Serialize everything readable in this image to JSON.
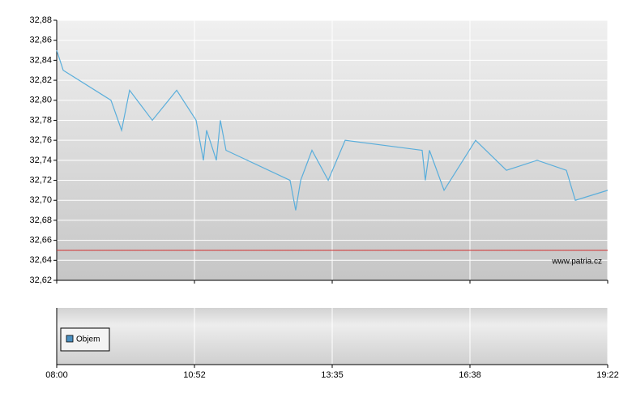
{
  "chart_data": {
    "type": "line",
    "x": [
      0,
      0.047,
      0.394,
      0.471,
      0.529,
      0.694,
      0.871,
      1.012,
      1.065,
      1.088,
      1.159,
      1.188,
      1.229,
      1.694,
      1.735,
      1.771,
      1.853,
      1.971,
      2.094,
      2.653,
      2.676,
      2.706,
      2.812,
      3.041,
      3.265,
      3.488,
      3.7,
      3.765,
      4
    ],
    "series": [
      {
        "color": "#5aaedb",
        "values": [
          32.85,
          32.83,
          32.8,
          32.77,
          32.81,
          32.78,
          32.81,
          32.78,
          32.74,
          32.77,
          32.74,
          32.78,
          32.75,
          32.72,
          32.69,
          32.72,
          32.75,
          32.72,
          32.76,
          32.75,
          32.72,
          32.75,
          32.71,
          32.76,
          32.73,
          32.74,
          32.73,
          32.7,
          32.71
        ]
      }
    ],
    "reference_line": {
      "value": 32.65,
      "color": "#d03030"
    },
    "xlim": [
      0,
      4
    ],
    "xticks": [
      {
        "value": 0,
        "label": "08:00"
      },
      {
        "value": 1,
        "label": "10:52"
      },
      {
        "value": 2,
        "label": "13:35"
      },
      {
        "value": 3,
        "label": "16:38"
      },
      {
        "value": 4,
        "label": "19:22"
      }
    ],
    "ylim": [
      32.62,
      32.88
    ],
    "yticks": [
      {
        "value": 32.62,
        "label": "32,62"
      },
      {
        "value": 32.64,
        "label": "32,64"
      },
      {
        "value": 32.66,
        "label": "32,66"
      },
      {
        "value": 32.68,
        "label": "32,68"
      },
      {
        "value": 32.7,
        "label": "32,70"
      },
      {
        "value": 32.72,
        "label": "32,72"
      },
      {
        "value": 32.74,
        "label": "32,74"
      },
      {
        "value": 32.76,
        "label": "32,76"
      },
      {
        "value": 32.78,
        "label": "32,78"
      },
      {
        "value": 32.8,
        "label": "32,80"
      },
      {
        "value": 32.82,
        "label": "32,82"
      },
      {
        "value": 32.84,
        "label": "32,84"
      },
      {
        "value": 32.86,
        "label": "32,86"
      },
      {
        "value": 32.88,
        "label": "32,88"
      }
    ],
    "grid": true,
    "watermark": "www.patria.cz",
    "volume_legend": {
      "name": "Objem",
      "color": "#4a8fc0"
    }
  }
}
